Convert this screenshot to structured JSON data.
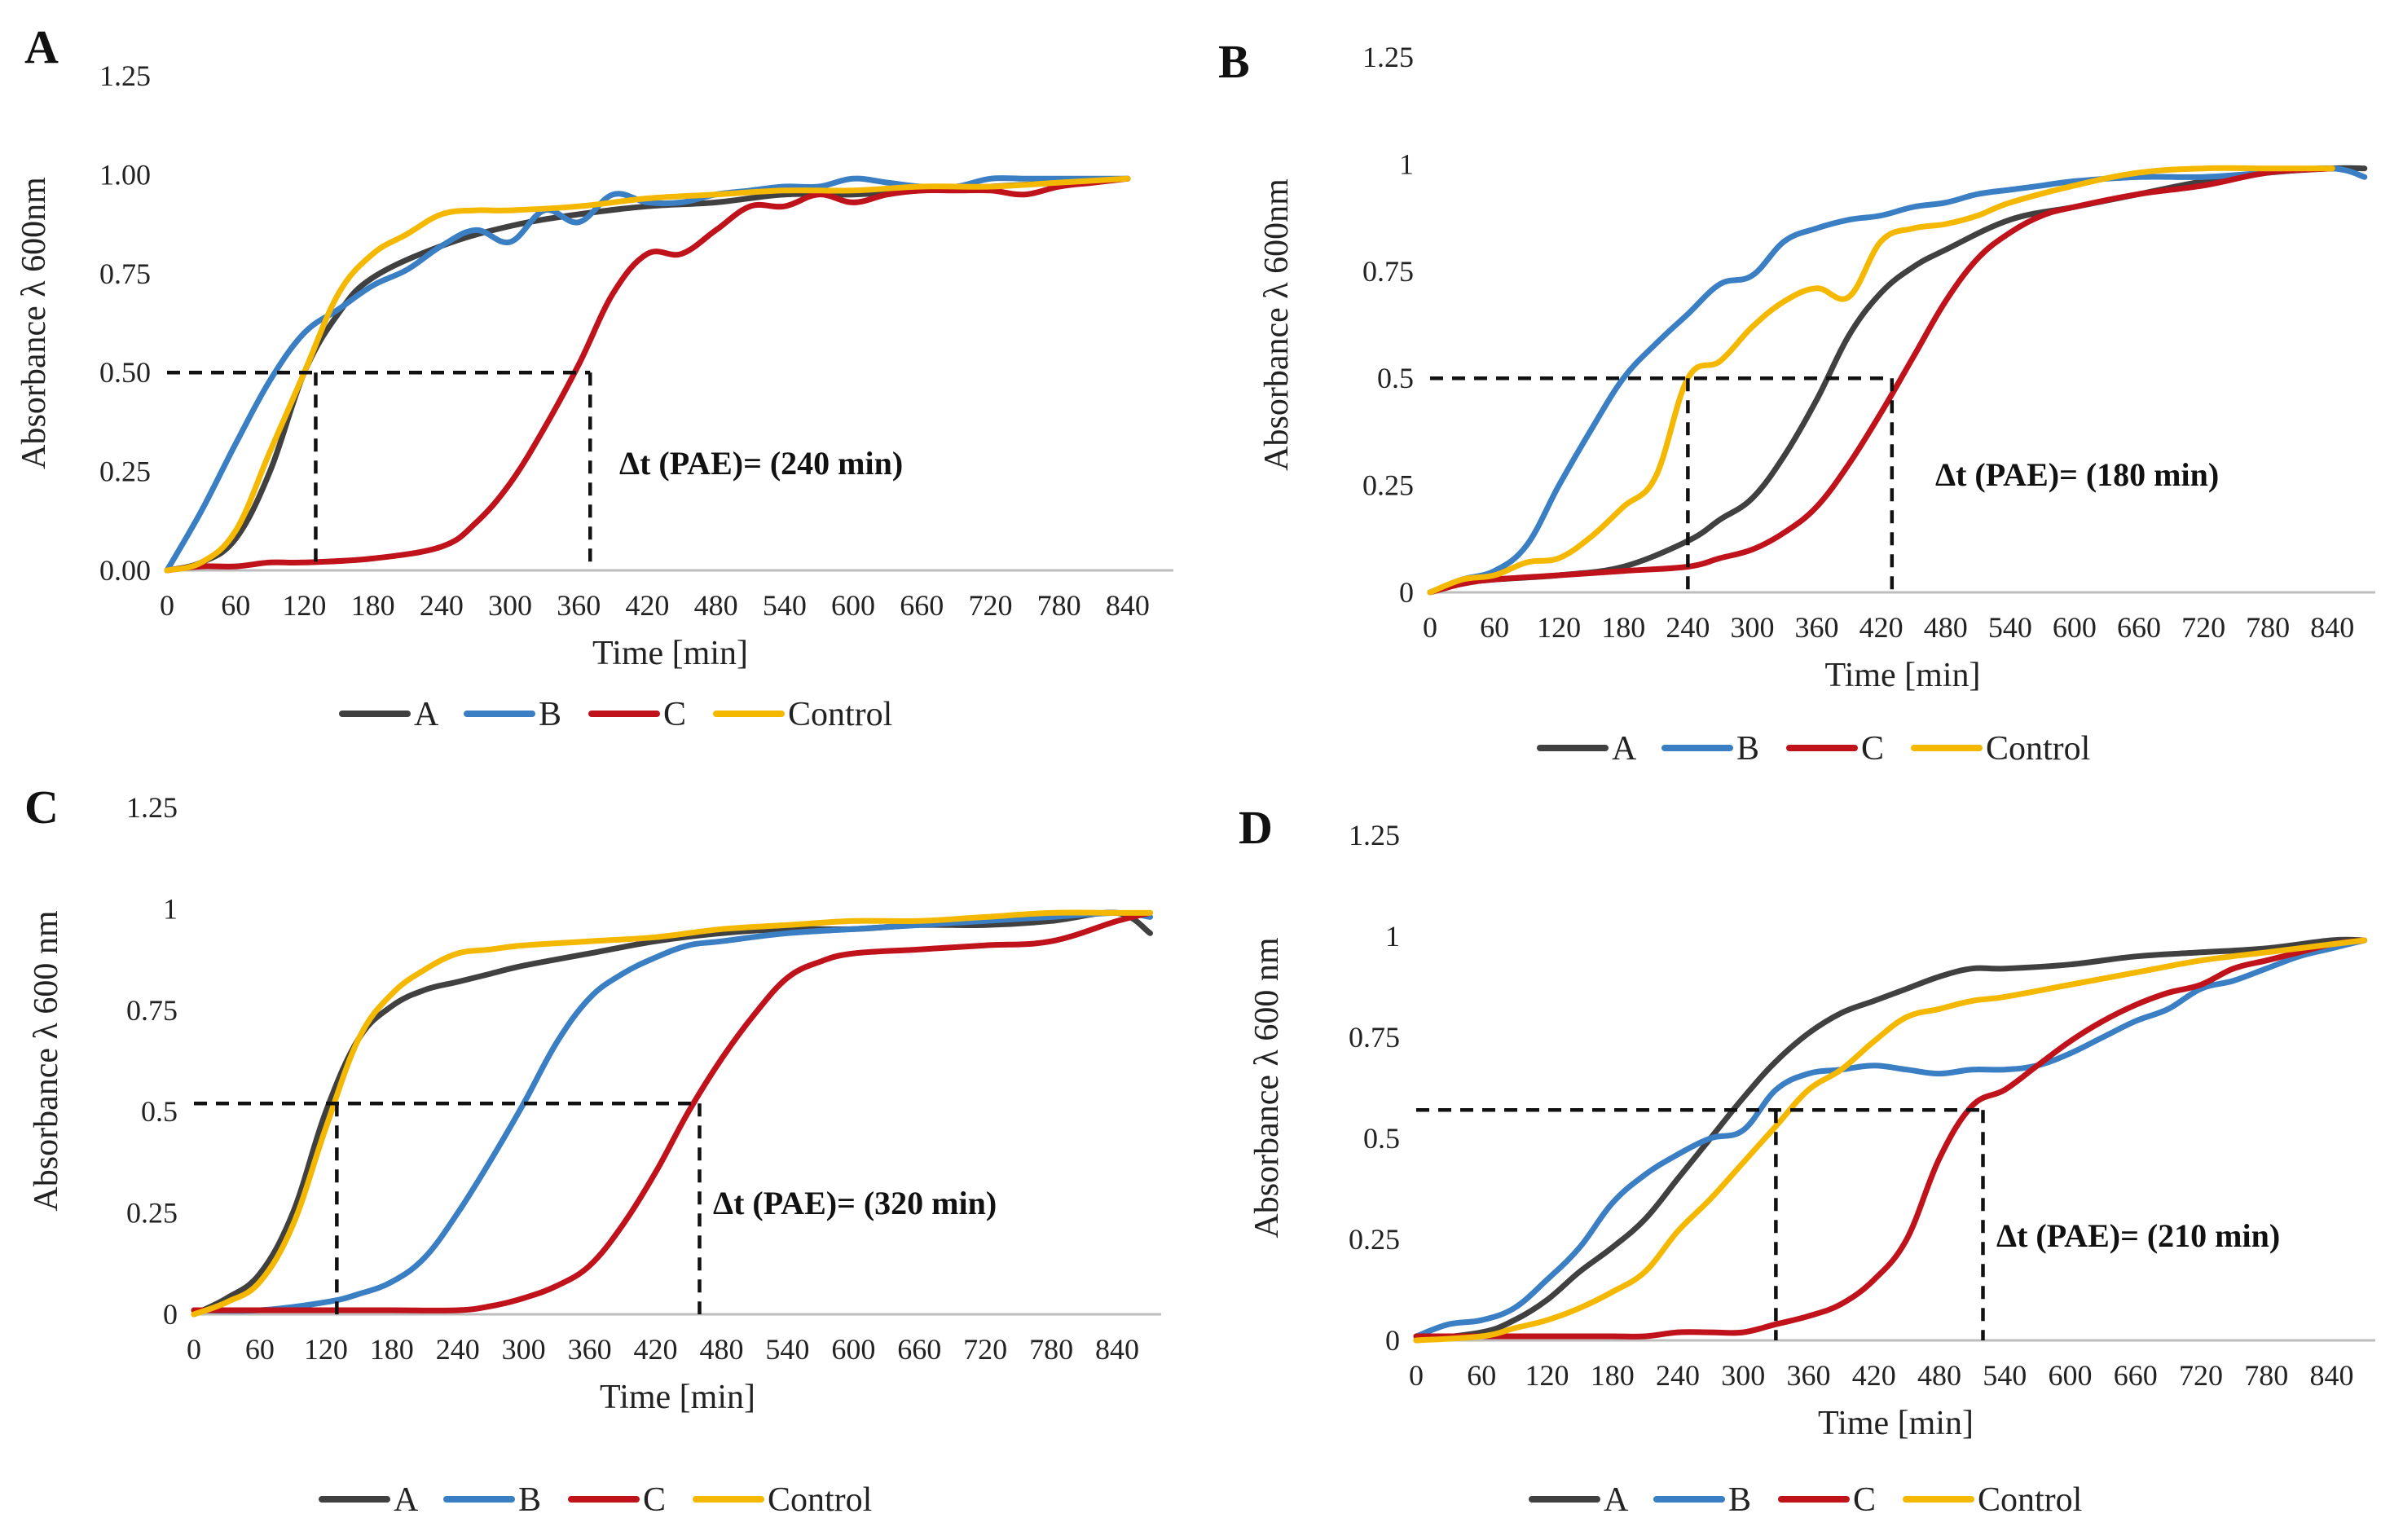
{
  "figure": {
    "series_names": [
      "A",
      "B",
      "C",
      "Control"
    ],
    "series_colors": {
      "A": "#404040",
      "B": "#3a7ec4",
      "C": "#c0121a",
      "Control": "#f5b800"
    }
  },
  "chart_data": [
    {
      "panel": "A",
      "type": "line",
      "xlabel": "Time [min]",
      "ylabel": "Absorbance λ 600nm",
      "xlim": [
        0,
        880
      ],
      "ylim": [
        0,
        1.25
      ],
      "xticks": [
        "0",
        "60",
        "120",
        "180",
        "240",
        "300",
        "360",
        "420",
        "480",
        "540",
        "600",
        "660",
        "720",
        "780",
        "840"
      ],
      "xtick_values": [
        0,
        60,
        120,
        180,
        240,
        300,
        360,
        420,
        480,
        540,
        600,
        660,
        720,
        780,
        840
      ],
      "yticks": [
        "0.00",
        "0.25",
        "0.50",
        "0.75",
        "1.00",
        "1.25"
      ],
      "ytick_values": [
        0,
        0.25,
        0.5,
        0.75,
        1.0,
        1.25
      ],
      "annotation": "Δt (PAE)= (240 min)",
      "threshold": 0.5,
      "markers": [
        130,
        370
      ],
      "series": [
        {
          "name": "A",
          "x": [
            0,
            30,
            60,
            90,
            120,
            150,
            180,
            240,
            300,
            360,
            420,
            480,
            540,
            600,
            660,
            720,
            780,
            840
          ],
          "values": [
            0,
            0.02,
            0.08,
            0.25,
            0.5,
            0.65,
            0.74,
            0.82,
            0.87,
            0.9,
            0.92,
            0.93,
            0.95,
            0.95,
            0.96,
            0.97,
            0.98,
            0.99
          ]
        },
        {
          "name": "B",
          "x": [
            0,
            30,
            60,
            90,
            120,
            150,
            180,
            210,
            240,
            270,
            300,
            330,
            360,
            390,
            420,
            450,
            480,
            510,
            540,
            570,
            600,
            630,
            660,
            690,
            720,
            750,
            780,
            810,
            840
          ],
          "values": [
            0,
            0.15,
            0.32,
            0.48,
            0.6,
            0.66,
            0.72,
            0.76,
            0.82,
            0.86,
            0.83,
            0.91,
            0.88,
            0.95,
            0.93,
            0.93,
            0.95,
            0.96,
            0.97,
            0.97,
            0.99,
            0.98,
            0.97,
            0.97,
            0.99,
            0.99,
            0.99,
            0.99,
            0.99
          ]
        },
        {
          "name": "C",
          "x": [
            0,
            30,
            60,
            90,
            120,
            180,
            240,
            270,
            300,
            330,
            360,
            390,
            420,
            450,
            480,
            510,
            540,
            570,
            600,
            630,
            660,
            690,
            720,
            750,
            780,
            810,
            840
          ],
          "values": [
            0,
            0.01,
            0.01,
            0.02,
            0.02,
            0.03,
            0.06,
            0.12,
            0.22,
            0.36,
            0.52,
            0.7,
            0.8,
            0.8,
            0.86,
            0.92,
            0.92,
            0.95,
            0.93,
            0.95,
            0.96,
            0.96,
            0.96,
            0.95,
            0.97,
            0.98,
            0.99
          ]
        },
        {
          "name": "Control",
          "x": [
            0,
            30,
            60,
            90,
            120,
            150,
            180,
            210,
            240,
            270,
            300,
            360,
            420,
            480,
            540,
            600,
            660,
            720,
            780,
            840
          ],
          "values": [
            0,
            0.02,
            0.1,
            0.3,
            0.5,
            0.7,
            0.8,
            0.85,
            0.9,
            0.91,
            0.91,
            0.92,
            0.94,
            0.95,
            0.96,
            0.96,
            0.97,
            0.97,
            0.98,
            0.99
          ]
        }
      ]
    },
    {
      "panel": "B",
      "type": "line",
      "xlabel": "Time [min]",
      "ylabel": "Absorbance λ 600nm",
      "xlim": [
        0,
        880
      ],
      "ylim": [
        0,
        1.25
      ],
      "xticks": [
        "0",
        "60",
        "120",
        "180",
        "240",
        "300",
        "360",
        "420",
        "480",
        "540",
        "600",
        "660",
        "720",
        "780",
        "840"
      ],
      "xtick_values": [
        0,
        60,
        120,
        180,
        240,
        300,
        360,
        420,
        480,
        540,
        600,
        660,
        720,
        780,
        840
      ],
      "yticks": [
        "0",
        "0.25",
        "0.5",
        "0.75",
        "1",
        "1.25"
      ],
      "ytick_values": [
        0,
        0.25,
        0.5,
        0.75,
        1.0,
        1.25
      ],
      "annotation": "Δt (PAE)= (180 min)",
      "threshold": 0.5,
      "markers": [
        240,
        430
      ],
      "series": [
        {
          "name": "A",
          "x": [
            0,
            30,
            60,
            120,
            180,
            240,
            270,
            300,
            330,
            360,
            390,
            420,
            450,
            480,
            540,
            600,
            660,
            720,
            780,
            840,
            870
          ],
          "values": [
            0,
            0.02,
            0.03,
            0.04,
            0.06,
            0.12,
            0.17,
            0.22,
            0.32,
            0.45,
            0.6,
            0.7,
            0.76,
            0.8,
            0.87,
            0.9,
            0.93,
            0.96,
            0.98,
            0.99,
            0.99
          ]
        },
        {
          "name": "B",
          "x": [
            0,
            30,
            60,
            90,
            120,
            150,
            180,
            210,
            240,
            270,
            300,
            330,
            360,
            390,
            420,
            450,
            480,
            510,
            540,
            570,
            600,
            660,
            720,
            780,
            840,
            870
          ],
          "values": [
            0,
            0.03,
            0.05,
            0.11,
            0.25,
            0.38,
            0.5,
            0.58,
            0.65,
            0.72,
            0.74,
            0.82,
            0.85,
            0.87,
            0.88,
            0.9,
            0.91,
            0.93,
            0.94,
            0.95,
            0.96,
            0.97,
            0.97,
            0.98,
            0.99,
            0.97
          ]
        },
        {
          "name": "C",
          "x": [
            0,
            30,
            60,
            120,
            180,
            240,
            270,
            300,
            330,
            360,
            390,
            420,
            450,
            480,
            510,
            540,
            570,
            600,
            660,
            720,
            780,
            840
          ],
          "values": [
            0,
            0.02,
            0.03,
            0.04,
            0.05,
            0.06,
            0.08,
            0.1,
            0.14,
            0.2,
            0.3,
            0.42,
            0.55,
            0.68,
            0.78,
            0.84,
            0.88,
            0.9,
            0.93,
            0.95,
            0.98,
            0.99
          ]
        },
        {
          "name": "Control",
          "x": [
            0,
            30,
            60,
            90,
            120,
            150,
            180,
            210,
            240,
            270,
            300,
            330,
            360,
            390,
            420,
            450,
            480,
            510,
            540,
            600,
            660,
            720,
            780,
            840
          ],
          "values": [
            0,
            0.03,
            0.04,
            0.07,
            0.08,
            0.13,
            0.2,
            0.27,
            0.5,
            0.54,
            0.62,
            0.68,
            0.71,
            0.69,
            0.82,
            0.85,
            0.86,
            0.88,
            0.91,
            0.95,
            0.98,
            0.99,
            0.99,
            0.99
          ]
        }
      ]
    },
    {
      "panel": "C",
      "type": "line",
      "xlabel": "Time [min]",
      "ylabel": "Absorbance λ 600 nm",
      "xlim": [
        0,
        880
      ],
      "ylim": [
        0,
        1.25
      ],
      "xticks": [
        "0",
        "60",
        "120",
        "180",
        "240",
        "300",
        "360",
        "420",
        "480",
        "540",
        "600",
        "660",
        "720",
        "780",
        "840"
      ],
      "xtick_values": [
        0,
        60,
        120,
        180,
        240,
        300,
        360,
        420,
        480,
        540,
        600,
        660,
        720,
        780,
        840
      ],
      "yticks": [
        "0",
        "0.25",
        "0.5",
        "0.75",
        "1",
        "1.25"
      ],
      "ytick_values": [
        0,
        0.25,
        0.5,
        0.75,
        1.0,
        1.25
      ],
      "annotation": "Δt (PAE)= (320 min)",
      "threshold": 0.52,
      "markers": [
        130,
        460
      ],
      "series": [
        {
          "name": "A",
          "x": [
            0,
            30,
            60,
            90,
            120,
            150,
            180,
            210,
            240,
            270,
            300,
            360,
            420,
            480,
            540,
            600,
            660,
            720,
            780,
            840,
            870
          ],
          "values": [
            0,
            0.04,
            0.1,
            0.25,
            0.5,
            0.68,
            0.76,
            0.8,
            0.82,
            0.84,
            0.86,
            0.89,
            0.92,
            0.94,
            0.95,
            0.95,
            0.96,
            0.96,
            0.97,
            0.99,
            0.94
          ]
        },
        {
          "name": "B",
          "x": [
            0,
            60,
            120,
            150,
            180,
            210,
            240,
            270,
            300,
            330,
            360,
            390,
            420,
            450,
            480,
            540,
            600,
            660,
            720,
            780,
            840,
            870
          ],
          "values": [
            0.01,
            0.01,
            0.03,
            0.05,
            0.08,
            0.14,
            0.25,
            0.38,
            0.52,
            0.67,
            0.78,
            0.84,
            0.88,
            0.91,
            0.92,
            0.94,
            0.95,
            0.96,
            0.97,
            0.98,
            0.99,
            0.98
          ]
        },
        {
          "name": "C",
          "x": [
            0,
            60,
            120,
            180,
            240,
            270,
            300,
            330,
            360,
            390,
            420,
            450,
            480,
            510,
            540,
            570,
            600,
            660,
            720,
            780,
            840,
            870
          ],
          "values": [
            0.01,
            0.01,
            0.01,
            0.01,
            0.01,
            0.02,
            0.04,
            0.07,
            0.12,
            0.22,
            0.35,
            0.5,
            0.63,
            0.74,
            0.83,
            0.87,
            0.89,
            0.9,
            0.91,
            0.92,
            0.97,
            0.99
          ]
        },
        {
          "name": "Control",
          "x": [
            0,
            30,
            60,
            90,
            120,
            150,
            180,
            210,
            240,
            270,
            300,
            360,
            420,
            480,
            540,
            600,
            660,
            720,
            780,
            840,
            870
          ],
          "values": [
            0,
            0.03,
            0.08,
            0.22,
            0.46,
            0.68,
            0.79,
            0.85,
            0.89,
            0.9,
            0.91,
            0.92,
            0.93,
            0.95,
            0.96,
            0.97,
            0.97,
            0.98,
            0.99,
            0.99,
            0.99
          ]
        }
      ]
    },
    {
      "panel": "D",
      "type": "line",
      "xlabel": "Time [min]",
      "ylabel": "Absorbance λ 600 nm",
      "xlim": [
        0,
        880
      ],
      "ylim": [
        0,
        1.25
      ],
      "xticks": [
        "0",
        "60",
        "120",
        "180",
        "240",
        "300",
        "360",
        "420",
        "480",
        "540",
        "600",
        "660",
        "720",
        "780",
        "840"
      ],
      "xtick_values": [
        0,
        60,
        120,
        180,
        240,
        300,
        360,
        420,
        480,
        540,
        600,
        660,
        720,
        780,
        840
      ],
      "yticks": [
        "0",
        "0.25",
        "0.5",
        "0.75",
        "1",
        "1.25"
      ],
      "ytick_values": [
        0,
        0.25,
        0.5,
        0.75,
        1.0,
        1.25
      ],
      "annotation": "Δt (PAE)= (210 min)",
      "threshold": 0.57,
      "markers": [
        330,
        520
      ],
      "series": [
        {
          "name": "A",
          "x": [
            0,
            60,
            90,
            120,
            150,
            180,
            210,
            240,
            270,
            300,
            330,
            360,
            390,
            420,
            450,
            480,
            510,
            540,
            600,
            660,
            720,
            780,
            840,
            870
          ],
          "values": [
            0,
            0.02,
            0.05,
            0.1,
            0.17,
            0.23,
            0.3,
            0.4,
            0.5,
            0.6,
            0.69,
            0.76,
            0.81,
            0.84,
            0.87,
            0.9,
            0.92,
            0.92,
            0.93,
            0.95,
            0.96,
            0.97,
            0.99,
            0.99
          ]
        },
        {
          "name": "B",
          "x": [
            0,
            30,
            60,
            90,
            120,
            150,
            180,
            210,
            240,
            270,
            300,
            330,
            360,
            390,
            420,
            450,
            480,
            510,
            540,
            570,
            600,
            630,
            660,
            690,
            720,
            750,
            780,
            810,
            840,
            870
          ],
          "values": [
            0.01,
            0.04,
            0.05,
            0.08,
            0.15,
            0.23,
            0.34,
            0.41,
            0.46,
            0.5,
            0.52,
            0.62,
            0.66,
            0.67,
            0.68,
            0.67,
            0.66,
            0.67,
            0.67,
            0.68,
            0.71,
            0.75,
            0.79,
            0.82,
            0.87,
            0.89,
            0.92,
            0.95,
            0.97,
            0.99
          ]
        },
        {
          "name": "C",
          "x": [
            0,
            60,
            120,
            180,
            210,
            240,
            270,
            300,
            330,
            360,
            390,
            420,
            450,
            480,
            510,
            540,
            570,
            600,
            630,
            660,
            690,
            720,
            750,
            780,
            810,
            840,
            870
          ],
          "values": [
            0.01,
            0.01,
            0.01,
            0.01,
            0.01,
            0.02,
            0.02,
            0.02,
            0.04,
            0.06,
            0.09,
            0.15,
            0.25,
            0.45,
            0.58,
            0.62,
            0.68,
            0.74,
            0.79,
            0.83,
            0.86,
            0.88,
            0.92,
            0.94,
            0.96,
            0.98,
            0.99
          ]
        },
        {
          "name": "Control",
          "x": [
            0,
            60,
            90,
            120,
            150,
            180,
            210,
            240,
            270,
            300,
            330,
            360,
            390,
            420,
            450,
            480,
            510,
            540,
            600,
            660,
            720,
            780,
            840,
            870
          ],
          "values": [
            0,
            0.01,
            0.03,
            0.05,
            0.08,
            0.12,
            0.17,
            0.27,
            0.35,
            0.44,
            0.53,
            0.62,
            0.67,
            0.74,
            0.8,
            0.82,
            0.84,
            0.85,
            0.88,
            0.91,
            0.94,
            0.96,
            0.98,
            0.99
          ]
        }
      ]
    }
  ]
}
